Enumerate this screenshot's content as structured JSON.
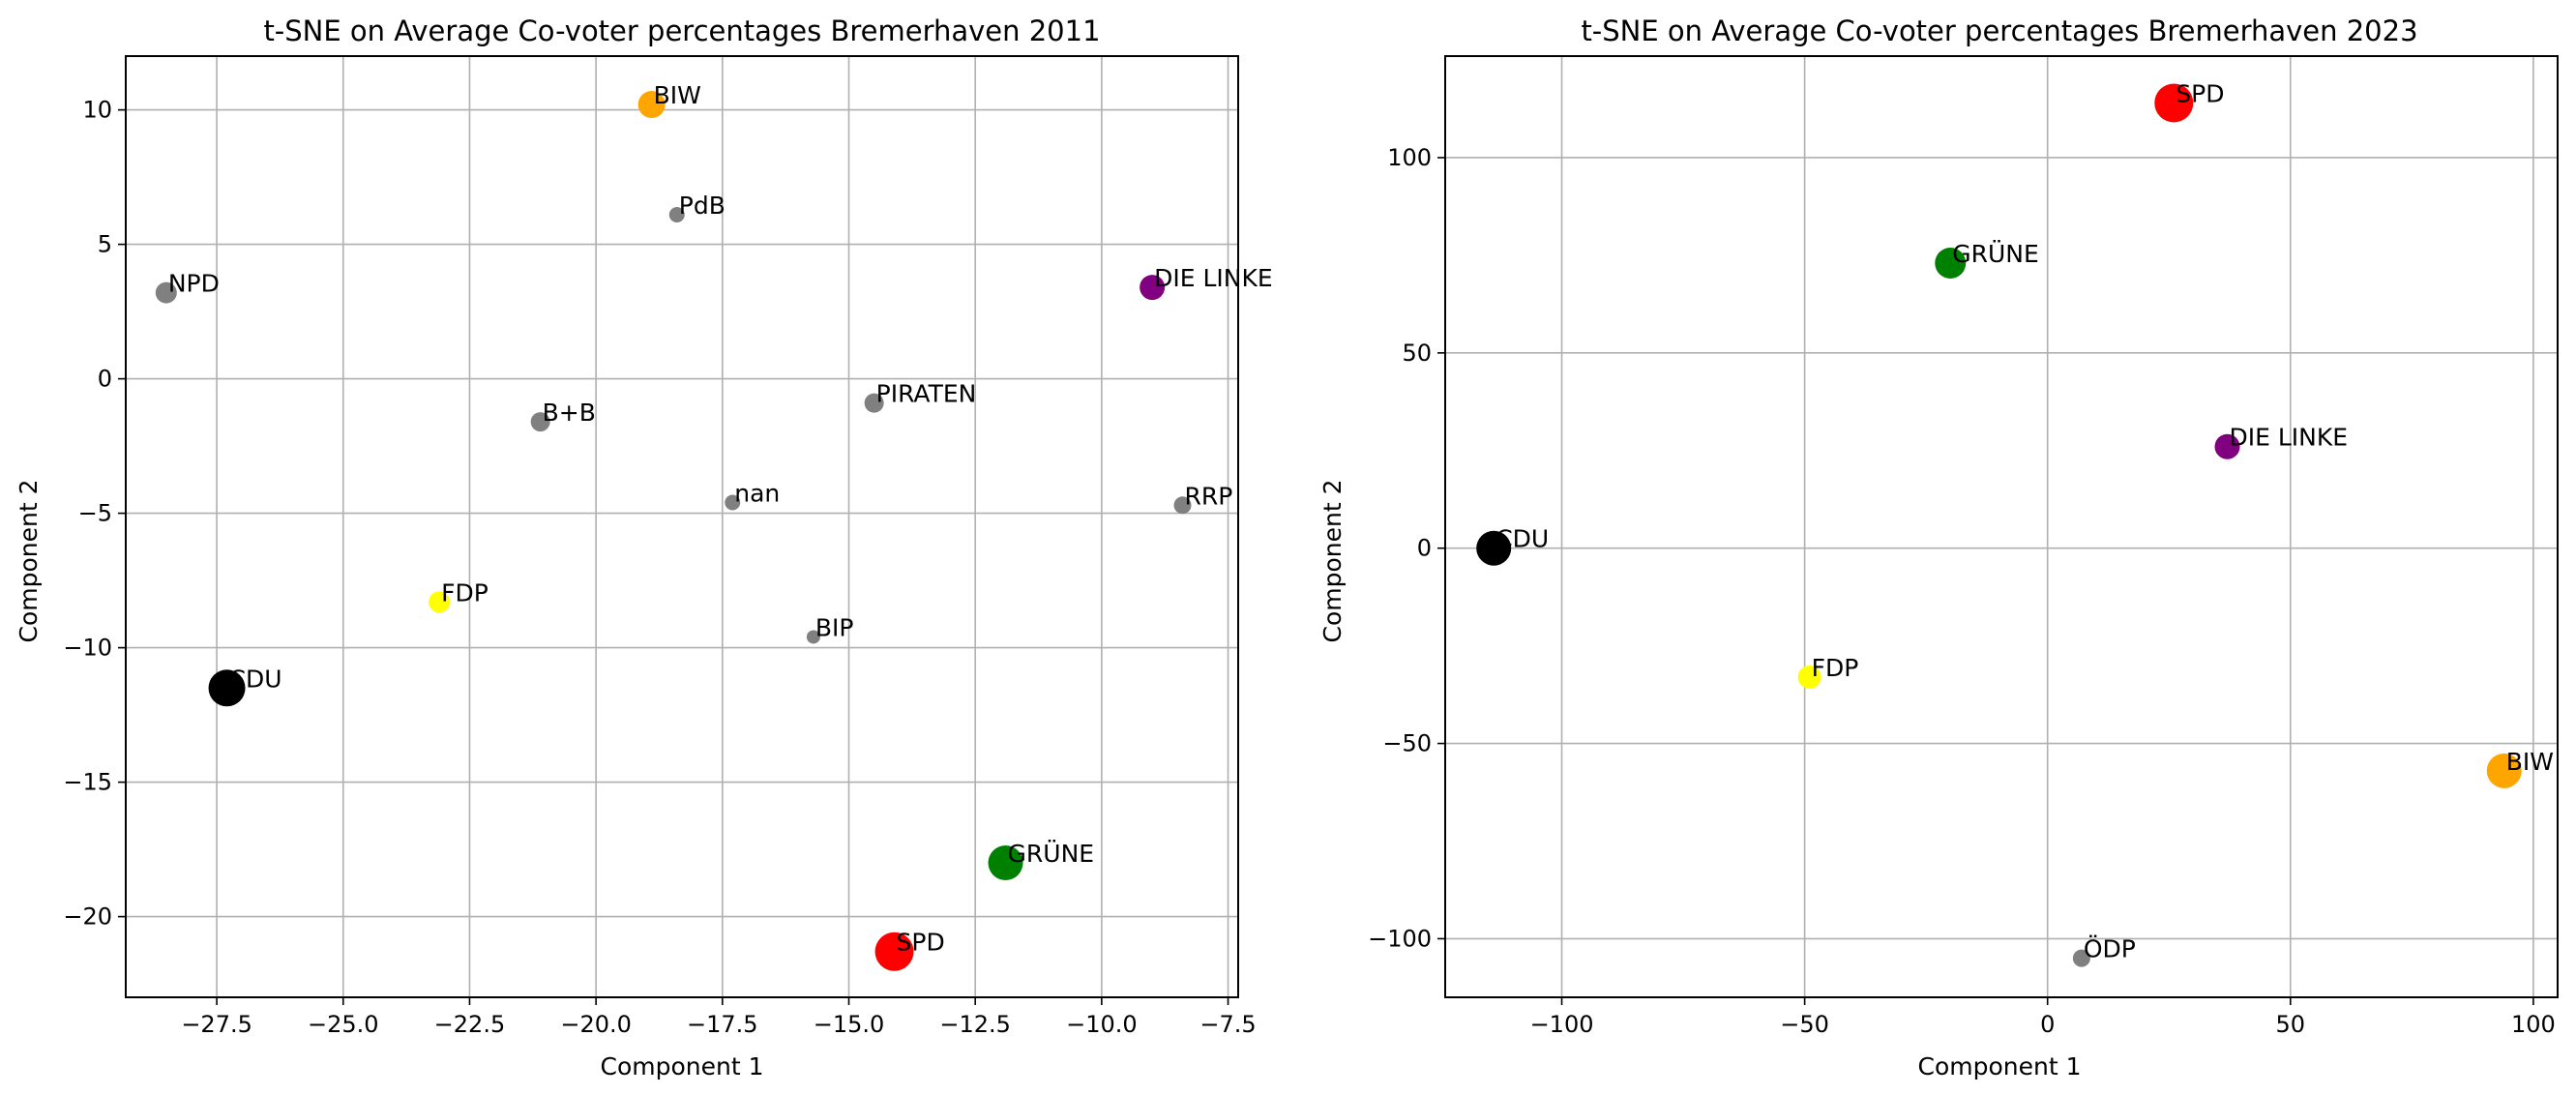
{
  "chart_data": [
    {
      "type": "scatter",
      "title": "t-SNE on Average Co-voter percentages Bremerhaven 2011",
      "xlabel": "Component 1",
      "ylabel": "Component 2",
      "xlim": [
        -29.3,
        -7.3
      ],
      "ylim": [
        -23.0,
        12.0
      ],
      "xticks": [
        -27.5,
        -25.0,
        -22.5,
        -20.0,
        -17.5,
        -15.0,
        -12.5,
        -10.0,
        -7.5
      ],
      "xtick_labels": [
        "−27.5",
        "−25.0",
        "−22.5",
        "−20.0",
        "−17.5",
        "−15.0",
        "−12.5",
        "−10.0",
        "−7.5"
      ],
      "yticks": [
        10,
        5,
        0,
        -5,
        -10,
        -15,
        -20
      ],
      "ytick_labels": [
        "10",
        "5",
        "0",
        "−5",
        "−10",
        "−15",
        "−20"
      ],
      "grid": true,
      "points": [
        {
          "label": "BIW",
          "x": -18.9,
          "y": 10.2,
          "color": "#FFA500",
          "size": 14
        },
        {
          "label": "PdB",
          "x": -18.4,
          "y": 6.1,
          "color": "#808080",
          "size": 8
        },
        {
          "label": "NPD",
          "x": -28.5,
          "y": 3.2,
          "color": "#808080",
          "size": 11
        },
        {
          "label": "DIE LINKE",
          "x": -9.0,
          "y": 3.4,
          "color": "#800080",
          "size": 13
        },
        {
          "label": "PIRATEN",
          "x": -14.5,
          "y": -0.9,
          "color": "#808080",
          "size": 10
        },
        {
          "label": "B+B",
          "x": -21.1,
          "y": -1.6,
          "color": "#808080",
          "size": 10
        },
        {
          "label": "nan",
          "x": -17.3,
          "y": -4.6,
          "color": "#808080",
          "size": 8
        },
        {
          "label": "RRP",
          "x": -8.4,
          "y": -4.7,
          "color": "#808080",
          "size": 9
        },
        {
          "label": "FDP",
          "x": -23.1,
          "y": -8.3,
          "color": "#FFFF00",
          "size": 11
        },
        {
          "label": "BIP",
          "x": -15.7,
          "y": -9.6,
          "color": "#808080",
          "size": 7
        },
        {
          "label": "CDU",
          "x": -27.3,
          "y": -11.5,
          "color": "#000000",
          "size": 19
        },
        {
          "label": "GRÜNE",
          "x": -11.9,
          "y": -18.0,
          "color": "#008000",
          "size": 18
        },
        {
          "label": "SPD",
          "x": -14.1,
          "y": -21.3,
          "color": "#FF0000",
          "size": 20
        }
      ]
    },
    {
      "type": "scatter",
      "title": "t-SNE on Average Co-voter percentages Bremerhaven 2023",
      "xlabel": "Component 1",
      "ylabel": "Component 2",
      "xlim": [
        -124,
        105
      ],
      "ylim": [
        -115,
        126
      ],
      "xticks": [
        -100,
        -50,
        0,
        50,
        100
      ],
      "xtick_labels": [
        "−100",
        "−50",
        "0",
        "50",
        "100"
      ],
      "yticks": [
        100,
        50,
        0,
        -50,
        -100
      ],
      "ytick_labels": [
        "100",
        "50",
        "0",
        "−50",
        "−100"
      ],
      "grid": true,
      "points": [
        {
          "label": "SPD",
          "x": 26,
          "y": 114,
          "color": "#FF0000",
          "size": 20
        },
        {
          "label": "GRÜNE",
          "x": -20,
          "y": 73,
          "color": "#008000",
          "size": 16
        },
        {
          "label": "DIE LINKE",
          "x": 37,
          "y": 26,
          "color": "#800080",
          "size": 13
        },
        {
          "label": "CDU",
          "x": -114,
          "y": 0,
          "color": "#000000",
          "size": 18
        },
        {
          "label": "FDP",
          "x": -49,
          "y": -33,
          "color": "#FFFF00",
          "size": 12
        },
        {
          "label": "BIW",
          "x": 94,
          "y": -57,
          "color": "#FFA500",
          "size": 18
        },
        {
          "label": "ÖDP",
          "x": 7,
          "y": -105,
          "color": "#808080",
          "size": 9
        }
      ]
    }
  ]
}
